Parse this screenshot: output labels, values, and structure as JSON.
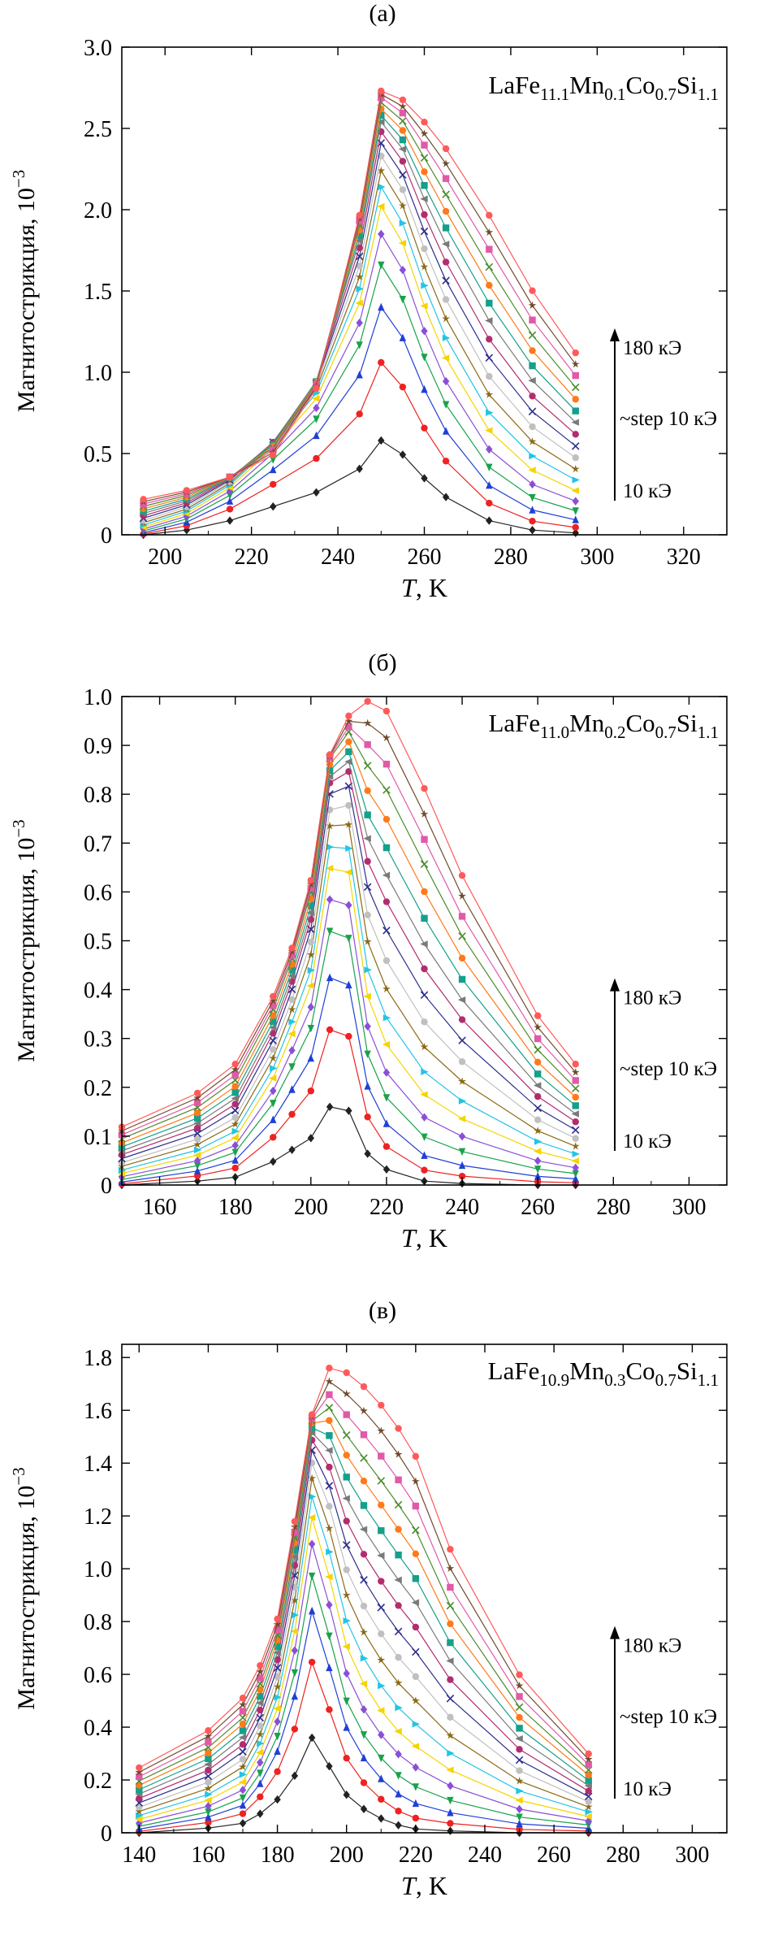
{
  "chart_data": [
    {
      "type": "line",
      "panel_label": "(а)",
      "title_parts": [
        "LaFe",
        "11.1",
        "Mn",
        "0.1",
        "Co",
        "0.7",
        "Si",
        "1.1"
      ],
      "xlabel_italic": "T",
      "xlabel_rest": ", K",
      "ylabel": "Магнитострикция, 10",
      "ylabel_exp": "−3",
      "xlim": [
        190,
        330
      ],
      "ylim": [
        0,
        3.0
      ],
      "x_ticks": [
        200,
        220,
        240,
        260,
        280,
        300,
        320
      ],
      "y_ticks": [
        "0",
        "0.5",
        "1.0",
        "1.5",
        "2.0",
        "2.5",
        "3.0"
      ],
      "y_tick_values": [
        0,
        0.5,
        1.0,
        1.5,
        2.0,
        2.5,
        3.0
      ],
      "annotations": {
        "top": "180 кЭ",
        "mid": "~step 10 кЭ",
        "bottom": "10 кЭ"
      },
      "field_kOe": [
        10,
        20,
        30,
        40,
        50,
        60,
        70,
        80,
        90,
        100,
        110,
        120,
        130,
        140,
        150,
        160,
        170,
        180
      ],
      "x": [
        195,
        205,
        215,
        225,
        235,
        245,
        250,
        255,
        260,
        265,
        275,
        285,
        295
      ],
      "series_peaks": [
        0.58,
        1.06,
        1.4,
        1.66,
        1.85,
        2.02,
        2.14,
        2.24,
        2.33,
        2.41,
        2.48,
        2.54,
        2.58,
        2.62,
        2.66,
        2.69,
        2.71,
        2.73
      ],
      "shape_ratio": [
        0.08,
        0.1,
        0.13,
        0.18,
        0.33,
        0.72,
        1.0,
        0.98,
        0.93,
        0.87,
        0.72,
        0.55,
        0.41
      ],
      "shape_decay": [
        0.0,
        0.05,
        0.15,
        0.3,
        0.45,
        0.7,
        1.0,
        0.85,
        0.6,
        0.4,
        0.15,
        0.05,
        0.02
      ]
    },
    {
      "type": "line",
      "panel_label": "(б)",
      "title_parts": [
        "LaFe",
        "11.0",
        "Mn",
        "0.2",
        "Co",
        "0.7",
        "Si",
        "1.1"
      ],
      "xlabel_italic": "T",
      "xlabel_rest": ", K",
      "ylabel": "Магнитострикция, 10",
      "ylabel_exp": "−3",
      "xlim": [
        150,
        310
      ],
      "ylim": [
        0,
        1.0
      ],
      "x_ticks": [
        160,
        180,
        200,
        220,
        240,
        260,
        280,
        300
      ],
      "y_ticks": [
        "0",
        "0.1",
        "0.2",
        "0.3",
        "0.4",
        "0.5",
        "0.6",
        "0.7",
        "0.8",
        "0.9",
        "1.0"
      ],
      "y_tick_values": [
        0,
        0.1,
        0.2,
        0.3,
        0.4,
        0.5,
        0.6,
        0.7,
        0.8,
        0.9,
        1.0
      ],
      "annotations": {
        "top": "180 кЭ",
        "mid": "~step 10 кЭ",
        "bottom": "10 кЭ"
      },
      "field_kOe": [
        10,
        20,
        30,
        40,
        50,
        60,
        70,
        80,
        90,
        100,
        110,
        120,
        130,
        140,
        150,
        160,
        170,
        180
      ],
      "x": [
        150,
        170,
        180,
        190,
        195,
        200,
        205,
        210,
        215,
        220,
        230,
        240,
        260,
        270
      ],
      "series_peaks": [
        0.16,
        0.32,
        0.43,
        0.53,
        0.6,
        0.67,
        0.72,
        0.77,
        0.81,
        0.85,
        0.88,
        0.9,
        0.92,
        0.94,
        0.96,
        0.97,
        0.98,
        0.99
      ],
      "shape_ratio": [
        0.12,
        0.19,
        0.25,
        0.39,
        0.49,
        0.63,
        0.89,
        0.97,
        1.0,
        0.98,
        0.82,
        0.64,
        0.35,
        0.25
      ],
      "shape_decay": [
        0.0,
        0.05,
        0.1,
        0.3,
        0.45,
        0.6,
        1.0,
        0.95,
        0.4,
        0.2,
        0.05,
        0.02,
        0.0,
        0.0
      ]
    },
    {
      "type": "line",
      "panel_label": "(в)",
      "title_parts": [
        "LaFe",
        "10.9",
        "Mn",
        "0.3",
        "Co",
        "0.7",
        "Si",
        "1.1"
      ],
      "xlabel_italic": "T",
      "xlabel_rest": ", K",
      "ylabel": "Магнитострикция, 10",
      "ylabel_exp": "−3",
      "xlim": [
        135,
        310
      ],
      "ylim": [
        0,
        1.85
      ],
      "x_ticks": [
        140,
        160,
        180,
        200,
        220,
        240,
        260,
        280,
        300
      ],
      "y_ticks": [
        "0",
        "0.2",
        "0.4",
        "0.6",
        "0.8",
        "1.0",
        "1.2",
        "1.4",
        "1.6",
        "1.8"
      ],
      "y_tick_values": [
        0,
        0.2,
        0.4,
        0.6,
        0.8,
        1.0,
        1.2,
        1.4,
        1.6,
        1.8
      ],
      "annotations": {
        "top": "180 кЭ",
        "mid": "~step 10 кЭ",
        "bottom": "10 кЭ"
      },
      "field_kOe": [
        10,
        20,
        30,
        40,
        50,
        60,
        70,
        80,
        90,
        100,
        110,
        120,
        130,
        140,
        150,
        160,
        170,
        180
      ],
      "x": [
        140,
        160,
        170,
        175,
        180,
        185,
        190,
        195,
        200,
        205,
        210,
        215,
        220,
        230,
        250,
        270
      ],
      "series_peaks": [
        0.36,
        0.65,
        0.85,
        0.99,
        1.12,
        1.23,
        1.32,
        1.4,
        1.47,
        1.53,
        1.58,
        1.62,
        1.65,
        1.68,
        1.7,
        1.72,
        1.74,
        1.76
      ],
      "shape_ratio": [
        0.14,
        0.22,
        0.29,
        0.36,
        0.46,
        0.67,
        0.9,
        1.0,
        0.99,
        0.96,
        0.92,
        0.87,
        0.81,
        0.61,
        0.34,
        0.17
      ],
      "shape_decay": [
        0.0,
        0.05,
        0.1,
        0.2,
        0.35,
        0.6,
        1.0,
        0.7,
        0.4,
        0.25,
        0.15,
        0.08,
        0.04,
        0.02,
        0.0,
        0.0
      ]
    }
  ],
  "series_colors": [
    "#222222",
    "#ee2222",
    "#1f3fd6",
    "#19a24a",
    "#8a4fd6",
    "#f5d400",
    "#23c4e6",
    "#8b6914",
    "#c0c0c0",
    "#2e2e8c",
    "#b22d6e",
    "#7a7a7a",
    "#14a08a",
    "#ff7a1a",
    "#4d8c2e",
    "#e05aa8",
    "#6f4b2a",
    "#ff5a5a"
  ]
}
